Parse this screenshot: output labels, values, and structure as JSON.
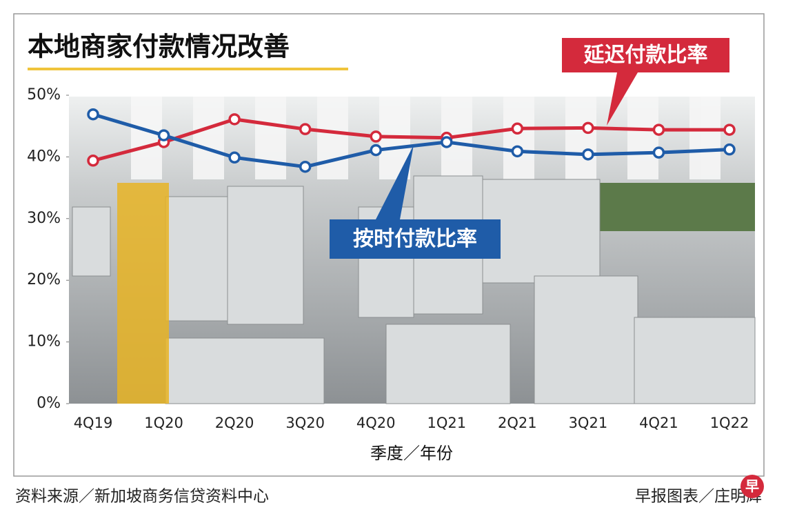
{
  "chart_data": {
    "type": "line",
    "title": "本地商家付款情况改善",
    "x_label": "季度／年份",
    "categories": [
      "4Q19",
      "1Q20",
      "2Q20",
      "3Q20",
      "4Q20",
      "1Q21",
      "2Q21",
      "3Q21",
      "4Q21",
      "1Q22"
    ],
    "series": [
      {
        "name": "延迟付款比率",
        "color": "#d42a3c",
        "values": [
          39.4,
          42.4,
          46.1,
          44.5,
          43.3,
          43.1,
          44.6,
          44.7,
          44.4,
          44.4
        ]
      },
      {
        "name": "按时付款比率",
        "color": "#1f5ca8",
        "values": [
          46.9,
          43.5,
          39.9,
          38.4,
          41.1,
          42.4,
          40.9,
          40.4,
          40.7,
          41.2
        ]
      }
    ],
    "ylim": [
      0,
      50
    ],
    "yticks": [
      {
        "value": 0,
        "label": "0%"
      },
      {
        "value": 10,
        "label": "10%"
      },
      {
        "value": 20,
        "label": "20%"
      },
      {
        "value": 30,
        "label": "30%"
      },
      {
        "value": 40,
        "label": "40%"
      },
      {
        "value": 50,
        "label": "50%"
      }
    ],
    "source": "资料来源／新加坡商务信贷资料中心",
    "credit": "早报图表／庄明辉",
    "logo": "早"
  }
}
